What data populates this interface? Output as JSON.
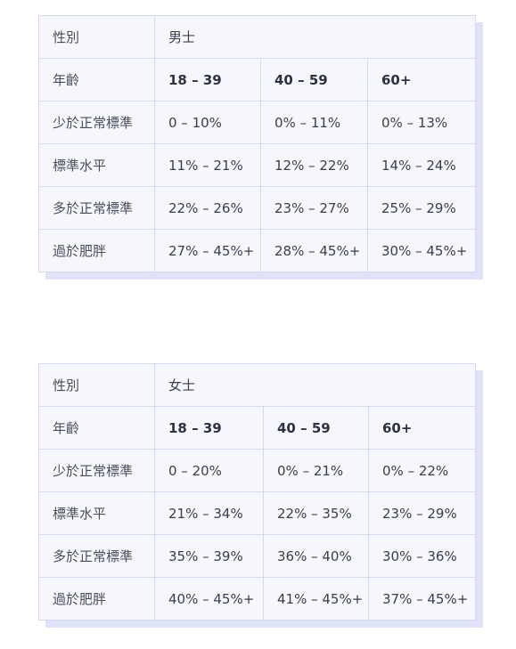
{
  "tables": [
    {
      "gender_label": "性別",
      "gender_value": "男士",
      "age_label": "年齡",
      "age_groups": [
        "18 – 39",
        "40 – 59",
        "60+"
      ],
      "rows": [
        {
          "label": "少於正常標準",
          "values": [
            "0 – 10%",
            "0% – 11%",
            "0% – 13%"
          ]
        },
        {
          "label": "標準水平",
          "values": [
            "11% – 21%",
            "12% – 22%",
            "14% – 24%"
          ]
        },
        {
          "label": "多於正常標準",
          "values": [
            "22% – 26%",
            "23% – 27%",
            "25% – 29%"
          ]
        },
        {
          "label": "過於肥胖",
          "values": [
            "27% – 45%+",
            "28% – 45%+",
            "30% – 45%+"
          ]
        }
      ]
    },
    {
      "gender_label": "性別",
      "gender_value": "女士",
      "age_label": "年齡",
      "age_groups": [
        "18 – 39",
        "40 – 59",
        "60+"
      ],
      "rows": [
        {
          "label": "少於正常標準",
          "values": [
            "0 – 20%",
            "0% – 21%",
            "0% – 22%"
          ]
        },
        {
          "label": "標準水平",
          "values": [
            "21% – 34%",
            "22% – 35%",
            "23% – 29%"
          ]
        },
        {
          "label": "多於正常標準",
          "values": [
            "35% – 39%",
            "36% – 40%",
            "30% – 36%"
          ]
        },
        {
          "label": "過於肥胖",
          "values": [
            "40% – 45%+",
            "41% – 45%+",
            "37% – 45%+"
          ]
        }
      ]
    }
  ]
}
